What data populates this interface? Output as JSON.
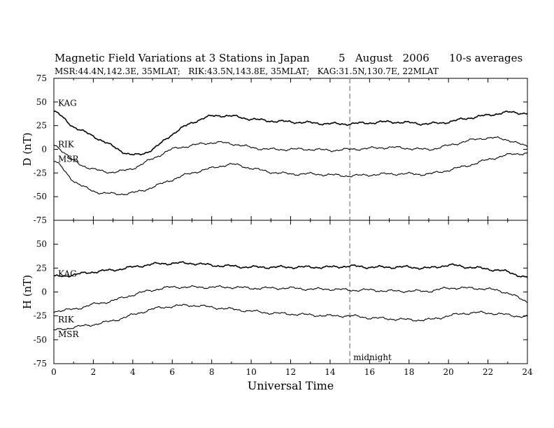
{
  "header": {
    "title": "Magnetic Field Variations at 3 Stations in Japan",
    "date": "5   August   2006",
    "averaging": "10-s averages",
    "stations": "MSR:44.4N,142.3E, 35MLAT;   RIK:43.5N,143.8E, 35MLAT;   KAG:31.5N,130.7E, 22MLAT"
  },
  "chart_data": [
    {
      "type": "line",
      "panel": "D",
      "ylabel": "D (nT)",
      "ylim": [
        -75,
        75
      ],
      "yticks": [
        -75,
        -50,
        -25,
        0,
        25,
        50,
        75
      ],
      "xlim": [
        0,
        24
      ],
      "xticks": [
        0,
        2,
        4,
        6,
        8,
        10,
        12,
        14,
        16,
        18,
        20,
        22,
        24
      ],
      "x": [
        0,
        1,
        2,
        3,
        4,
        5,
        6,
        7,
        8,
        9,
        10,
        11,
        12,
        13,
        14,
        15,
        16,
        17,
        18,
        19,
        20,
        21,
        22,
        23,
        24
      ],
      "series": [
        {
          "name": "KAG",
          "values": [
            40,
            24,
            14,
            3,
            -6,
            0,
            16,
            28,
            35,
            35,
            32,
            30,
            29,
            28,
            27,
            27,
            28,
            29,
            28,
            27,
            29,
            33,
            36,
            39,
            38
          ]
        },
        {
          "name": "RIK",
          "values": [
            5,
            -12,
            -21,
            -24,
            -20,
            -10,
            0,
            4,
            7,
            6,
            2,
            0,
            0,
            0,
            -1,
            0,
            1,
            2,
            1,
            0,
            4,
            9,
            12,
            10,
            3
          ]
        },
        {
          "name": "MSR",
          "values": [
            -12,
            -33,
            -44,
            -47,
            -46,
            -40,
            -32,
            -25,
            -20,
            -16,
            -20,
            -24,
            -26,
            -26,
            -27,
            -28,
            -27,
            -26,
            -26,
            -26,
            -22,
            -17,
            -11,
            -6,
            -4
          ]
        }
      ],
      "vline": {
        "x": 15
      }
    },
    {
      "type": "line",
      "panel": "H",
      "ylabel": "H (nT)",
      "ylim": [
        -75,
        75
      ],
      "yticks": [
        -75,
        -50,
        -25,
        0,
        25,
        50,
        75
      ],
      "xlim": [
        0,
        24
      ],
      "xticks": [
        0,
        2,
        4,
        6,
        8,
        10,
        12,
        14,
        16,
        18,
        20,
        22,
        24
      ],
      "xlabel": "Universal Time",
      "x": [
        0,
        1,
        2,
        3,
        4,
        5,
        6,
        7,
        8,
        9,
        10,
        11,
        12,
        13,
        14,
        15,
        16,
        17,
        18,
        19,
        20,
        21,
        22,
        23,
        24
      ],
      "series": [
        {
          "name": "KAG",
          "values": [
            16,
            18,
            21,
            23,
            26,
            29,
            30,
            30,
            28,
            27,
            26,
            26,
            26,
            26,
            26,
            27,
            26,
            26,
            26,
            25,
            28,
            26,
            24,
            21,
            15
          ]
        },
        {
          "name": "RIK",
          "values": [
            -20,
            -18,
            -13,
            -9,
            -3,
            2,
            5,
            5,
            5,
            5,
            4,
            4,
            4,
            3,
            3,
            2,
            2,
            1,
            1,
            1,
            4,
            4,
            3,
            -1,
            -10
          ]
        },
        {
          "name": "MSR",
          "values": [
            -40,
            -37,
            -34,
            -30,
            -24,
            -18,
            -15,
            -14,
            -16,
            -18,
            -20,
            -22,
            -23,
            -24,
            -25,
            -25,
            -27,
            -28,
            -29,
            -29,
            -25,
            -22,
            -22,
            -24,
            -26
          ]
        }
      ],
      "vline": {
        "x": 15,
        "label": "midnight"
      }
    }
  ],
  "colors": {
    "line": "#000000",
    "vline": "#9a9a9a",
    "axis": "#000000"
  }
}
